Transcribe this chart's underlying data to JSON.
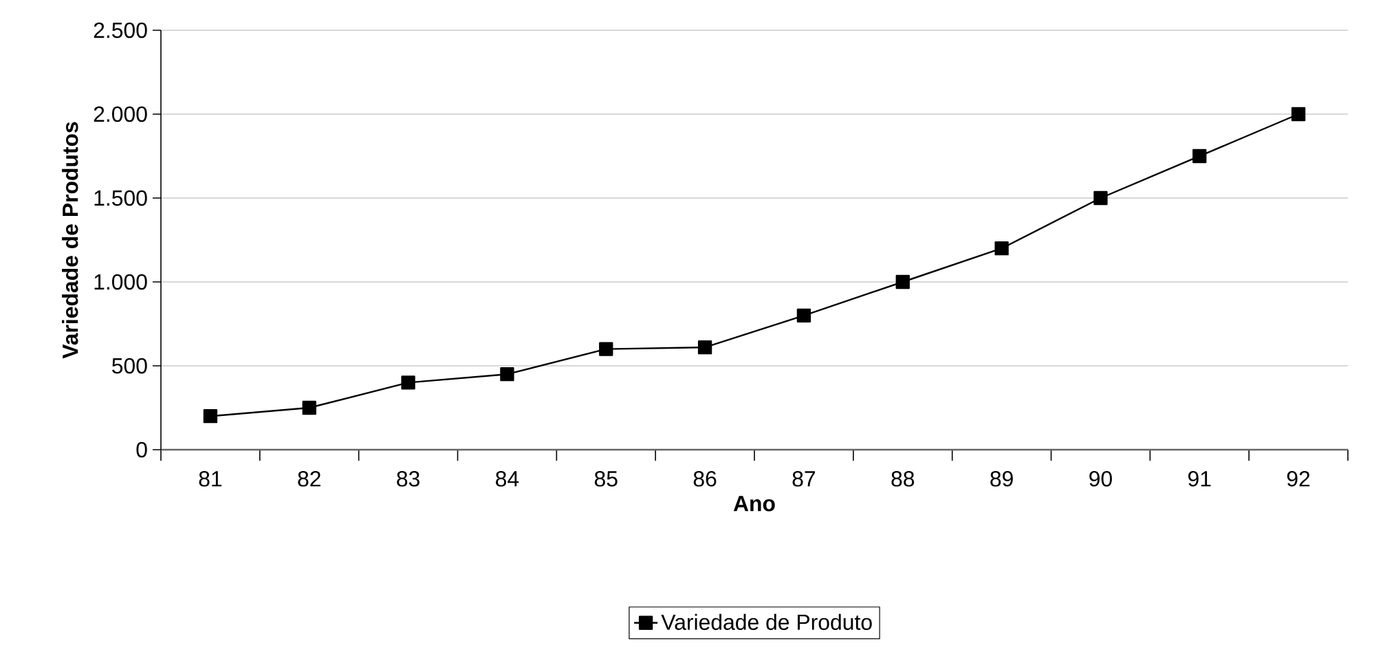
{
  "chart_data": {
    "type": "line",
    "xlabel": "Ano",
    "ylabel": "Variedade de Produtos",
    "categories": [
      "81",
      "82",
      "83",
      "84",
      "85",
      "86",
      "87",
      "88",
      "89",
      "90",
      "91",
      "92"
    ],
    "series": [
      {
        "name": "Variedade de Produto",
        "color": "#000000",
        "values": [
          200,
          250,
          400,
          450,
          600,
          610,
          800,
          1000,
          1200,
          1500,
          1750,
          2000
        ]
      }
    ],
    "ylim": [
      0,
      2500
    ],
    "yticks": [
      0,
      500,
      {
        "value": 1000,
        "label": "1.000"
      },
      {
        "value": 1500,
        "label": "1.500"
      },
      {
        "value": 2000,
        "label": "2.000"
      },
      {
        "value": 2500,
        "label": "2.500"
      }
    ],
    "grid": "y",
    "legend": "bottom",
    "marker": "square",
    "line_style": "solid"
  }
}
